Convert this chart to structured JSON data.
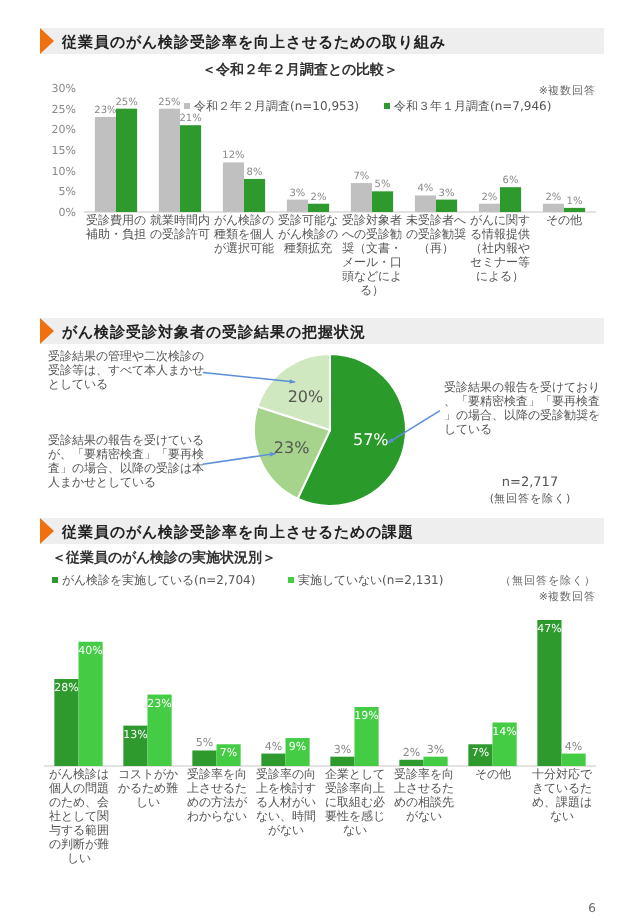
{
  "chart_data": [
    {
      "type": "bar",
      "title": "従業員のがん検診受診率を向上させるための取り組み",
      "subtitle": "＜令和２年２月調査との比較＞",
      "categories": [
        "受診費用の補助・負担",
        "就業時間内の受診許可",
        "がん検診の種類を個人が選択可能",
        "受診可能ながん検診の種類拡充",
        "受診対象者への受診勧奨（文書・メール・口頭などによる）",
        "未受診者への受診勧奨（再）",
        "がんに関する情報提供（社内報やセミナー等による）",
        "その他"
      ],
      "series": [
        {
          "name": "令和２年２月調査(n=10,953)",
          "color": "#c0c0c0",
          "values": [
            23,
            25,
            12,
            3,
            7,
            4,
            2,
            2
          ],
          "value_labels": [
            "23%",
            "25%",
            "12%",
            "3%",
            "7%",
            "4%",
            "2%",
            "2%"
          ]
        },
        {
          "name": "令和３年１月調査(n=7,946)",
          "color": "#2e9a2e",
          "values": [
            25,
            21,
            8,
            2,
            5,
            3,
            6,
            1
          ],
          "value_labels": [
            "25%",
            "21%",
            "8%",
            "2%",
            "5%",
            "3%",
            "6%",
            "1%"
          ]
        }
      ],
      "ylim": [
        0,
        30
      ],
      "yticks": [
        {
          "value": 0,
          "label": "0%"
        },
        {
          "value": 5,
          "label": "5%"
        },
        {
          "value": 10,
          "label": "10%"
        },
        {
          "value": 15,
          "label": "15%"
        },
        {
          "value": 20,
          "label": "20%"
        },
        {
          "value": 25,
          "label": "25%"
        },
        {
          "value": 30,
          "label": "30%"
        }
      ],
      "legend": "top",
      "annotations": [
        "※複数回答"
      ]
    },
    {
      "type": "pie",
      "title": "がん検診受診対象者の受診結果の把握状況",
      "categories": [
        "受診結果の報告を受けており、「要精密検査」「要再検査」の場合、以降の受診勧奨をしている",
        "受診結果の報告を受けているが、「要精密検査」「要再検査」の場合、以降の受診は本人まかせとしている",
        "受診結果の管理や二次検診の受診等は、すべて本人まかせとしている"
      ],
      "values": [
        57,
        23,
        20
      ],
      "colors": [
        "#2a9a2a",
        "#a6d48c",
        "#cfe8bf"
      ],
      "value_labels": [
        "57%",
        "23%",
        "20%"
      ],
      "annotations": [
        "n=2,717",
        "(無回答を除く)"
      ]
    },
    {
      "type": "bar",
      "title": "従業員のがん検診受診率を向上させるための課題",
      "subtitle": "＜従業員のがん検診の実施状況別＞",
      "categories": [
        "がん検診は個人の問題のため、会社として関与する範囲の判断が難しい",
        "コストがかかるため難しい",
        "受診率を向上させるための方法がわからない",
        "受診率の向上を検討する人材がいない、時間がない",
        "企業として受診率向上に取組む必要性を感じない",
        "受診率を向上させるための相談先がない",
        "その他",
        "十分対応できているため、課題はない"
      ],
      "series": [
        {
          "name": "がん検診を実施している(n=2,704)",
          "color": "#2e9a2e",
          "values": [
            28,
            13,
            5,
            4,
            3,
            2,
            7,
            47
          ],
          "value_labels": [
            "28%",
            "13%",
            "5%",
            "4%",
            "3%",
            "2%",
            "7%",
            "47%"
          ]
        },
        {
          "name": "実施していない(n=2,131)",
          "color": "#44cc44",
          "values": [
            40,
            23,
            7,
            9,
            19,
            3,
            14,
            4
          ],
          "value_labels": [
            "40%",
            "23%",
            "7%",
            "9%",
            "19%",
            "3%",
            "14%",
            "4%"
          ]
        }
      ],
      "legend": "top",
      "annotations": [
        "（無回答を除く）",
        "※複数回答",
        "6"
      ]
    }
  ]
}
